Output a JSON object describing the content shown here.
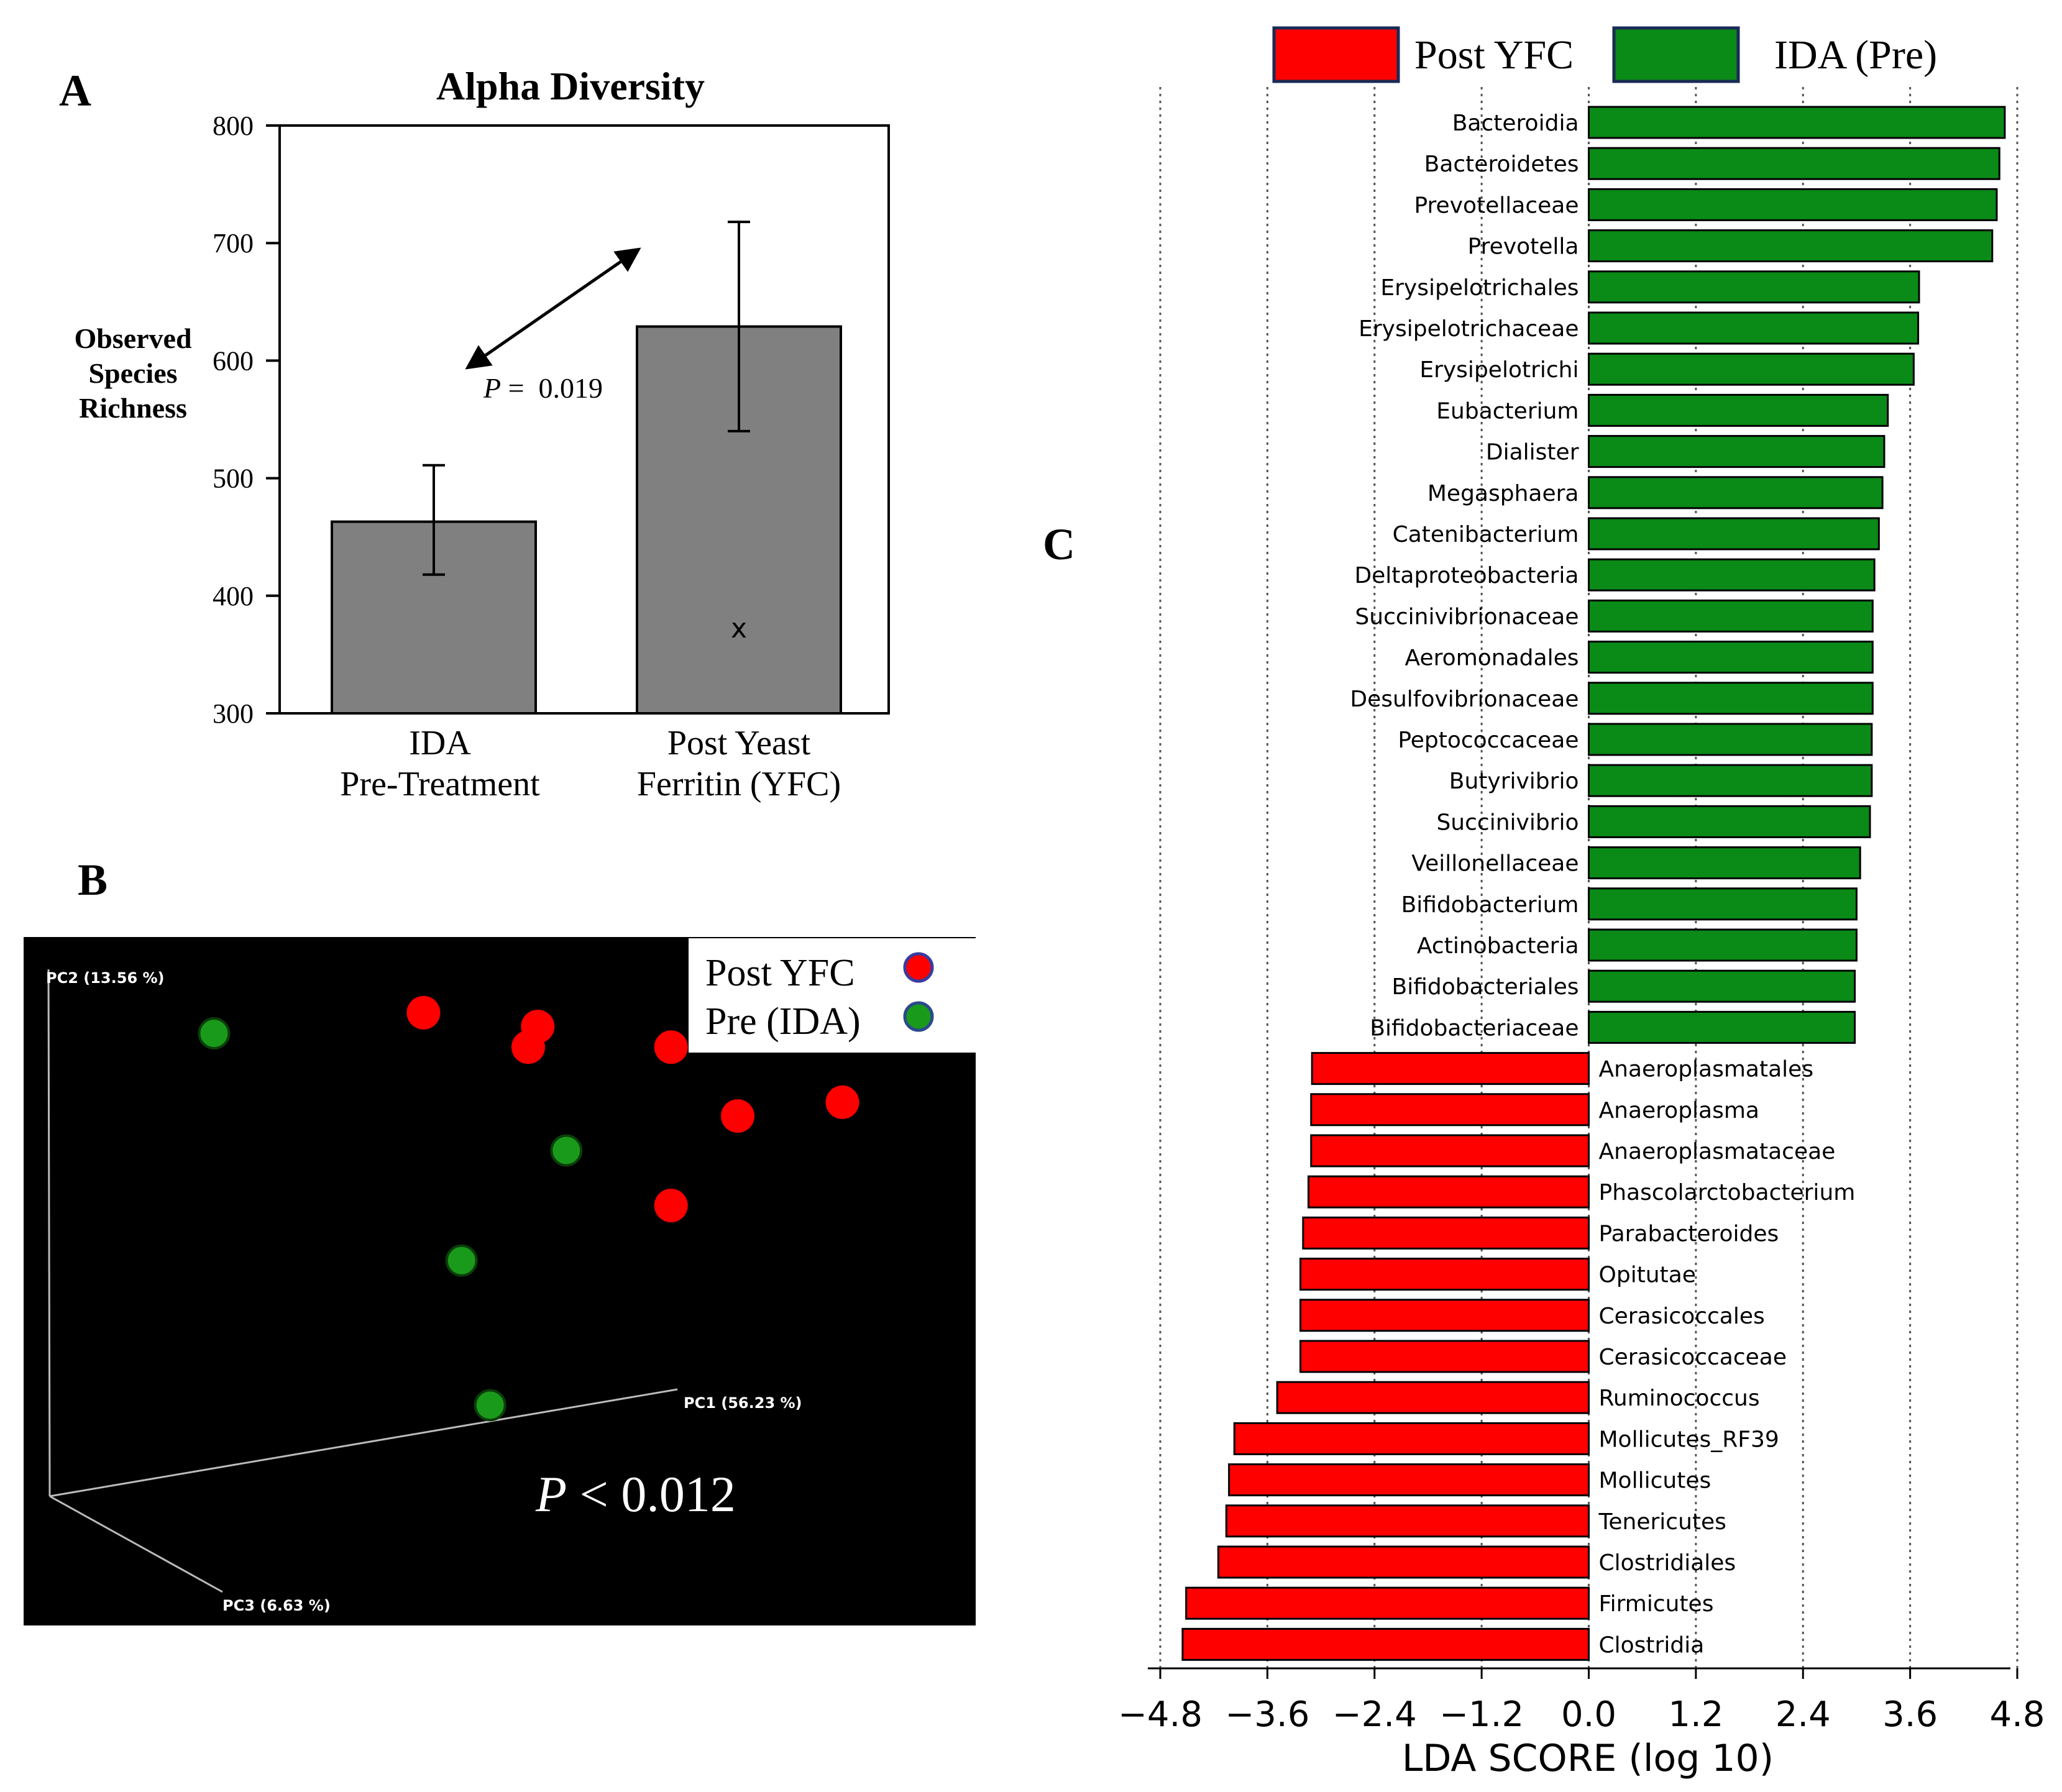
{
  "panel_labels": {
    "a": "A",
    "b": "B",
    "c": "C"
  },
  "chart_data": [
    {
      "type": "bar",
      "title": "Alpha Diversity",
      "ylabel": [
        "Observed",
        "Species",
        "Richness"
      ],
      "categories": [
        [
          "IDA",
          "Pre-Treatment"
        ],
        [
          "Post Yeast",
          "Ferritin (YFC)"
        ]
      ],
      "values": [
        463,
        629
      ],
      "error_low": [
        418,
        540
      ],
      "error_high": [
        511,
        718
      ],
      "ylim": [
        300,
        800
      ],
      "yticks": [
        "300",
        "400",
        "500",
        "600",
        "700",
        "800"
      ],
      "annotation_p": {
        "label": "P",
        "rest": " =  0.019"
      },
      "outlier": {
        "category": 1,
        "value": 372,
        "marker": "x"
      }
    },
    {
      "type": "scatter",
      "axes": {
        "pc1": "PC1 (56.23 %)",
        "pc2": "PC2 (13.56 %)",
        "pc3": "PC3 (6.63 %)"
      },
      "legend": [
        {
          "label": "Post YFC",
          "color": "#ff0000"
        },
        {
          "label": "Pre (IDA)",
          "color": "#1a9a1a"
        }
      ],
      "annotation_p": {
        "label": "P",
        "rest": " < 0.012"
      },
      "groups": [
        {
          "name": "Post YFC",
          "points": [
            [
              0.42,
              0.89
            ],
            [
              0.54,
              0.87
            ],
            [
              0.53,
              0.84
            ],
            [
              0.68,
              0.84
            ],
            [
              0.75,
              0.74
            ],
            [
              0.86,
              0.76
            ],
            [
              0.68,
              0.61
            ]
          ]
        },
        {
          "name": "Pre (IDA)",
          "points": [
            [
              0.2,
              0.86
            ],
            [
              0.57,
              0.69
            ],
            [
              0.46,
              0.53
            ],
            [
              0.49,
              0.32
            ]
          ]
        }
      ]
    },
    {
      "type": "bar",
      "orientation": "horizontal",
      "xlabel": "LDA SCORE (log 10)",
      "xlim": [
        -4.8,
        4.8
      ],
      "xticks": [
        "−4.8",
        "−3.6",
        "−2.4",
        "−1.2",
        "0.0",
        "1.2",
        "2.4",
        "3.6",
        "4.8"
      ],
      "legend": [
        {
          "label": "Post YFC",
          "color": "#ff0000"
        },
        {
          "label": "IDA (Pre)",
          "color": "#0a8a17"
        }
      ],
      "colors": {
        "pre": "#0a8a17",
        "post": "#ff0000"
      },
      "categories": [
        "Bacteroidia",
        "Bacteroidetes",
        "Prevotellaceae",
        "Prevotella",
        "Erysipelotrichales",
        "Erysipelotrichaceae",
        "Erysipelotrichi",
        "Eubacterium",
        "Dialister",
        "Megasphaera",
        "Catenibacterium",
        "Deltaproteobacteria",
        "Succinivibrionaceae",
        "Aeromonadales",
        "Desulfovibrionaceae",
        "Peptococcaceae",
        "Butyrivibrio",
        "Succinivibrio",
        "Veillonellaceae",
        "Bifidobacterium",
        "Actinobacteria",
        "Bifidobacteriales",
        "Bifidobacteriaceae",
        "Anaeroplasmatales",
        "Anaeroplasma",
        "Anaeroplasmataceae",
        "Phascolarctobacterium",
        "Parabacteroides",
        "Opitutae",
        "Cerasicoccales",
        "Cerasicoccaceae",
        "Ruminococcus",
        "Mollicutes_RF39",
        "Mollicutes",
        "Tenericutes",
        "Clostridiales",
        "Firmicutes",
        "Clostridia"
      ],
      "values": [
        4.66,
        4.6,
        4.57,
        4.52,
        3.7,
        3.69,
        3.64,
        3.35,
        3.31,
        3.29,
        3.25,
        3.2,
        3.18,
        3.18,
        3.18,
        3.17,
        3.17,
        3.15,
        3.04,
        3.0,
        3.0,
        2.98,
        2.98,
        -3.1,
        -3.11,
        -3.11,
        -3.14,
        -3.2,
        -3.23,
        -3.23,
        -3.23,
        -3.49,
        -3.97,
        -4.03,
        -4.06,
        -4.15,
        -4.51,
        -4.55
      ]
    }
  ]
}
